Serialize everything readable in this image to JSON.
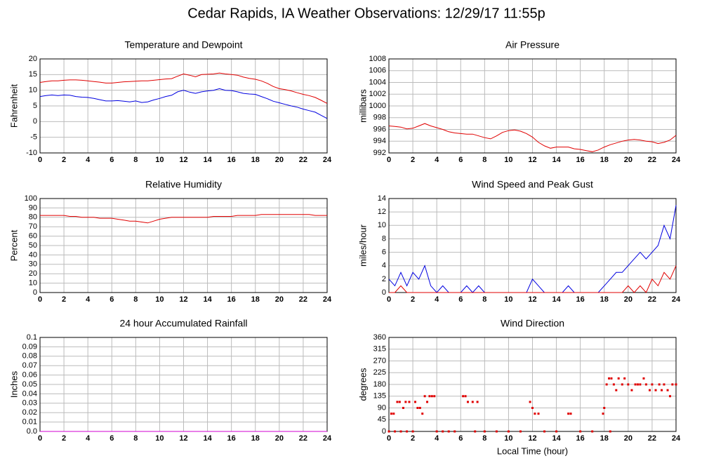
{
  "title": "Cedar Rapids, IA Weather Observations: 12/29/17 11:55p",
  "chart_data": [
    {
      "type": "line",
      "title": "Temperature and Dewpoint",
      "ylabel": "Fahrenheit",
      "xlim": [
        0,
        24
      ],
      "xticks": [
        0,
        2,
        4,
        6,
        8,
        10,
        12,
        14,
        16,
        18,
        20,
        22,
        24
      ],
      "ylim": [
        -10,
        20
      ],
      "yticks": [
        -10,
        -5,
        0,
        5,
        10,
        15,
        20
      ],
      "grid": true,
      "x": [
        0,
        0.5,
        1,
        1.5,
        2,
        2.5,
        3,
        3.5,
        4,
        4.5,
        5,
        5.5,
        6,
        6.5,
        7,
        7.5,
        8,
        8.5,
        9,
        9.5,
        10,
        10.5,
        11,
        11.5,
        12,
        12.5,
        13,
        13.5,
        14,
        14.5,
        15,
        15.5,
        16,
        16.5,
        17,
        17.5,
        18,
        18.5,
        19,
        19.5,
        20,
        20.5,
        21,
        21.5,
        22,
        22.5,
        23,
        23.5,
        24
      ],
      "series": [
        {
          "color": "#e00000",
          "values": [
            12.5,
            12.8,
            13,
            13,
            13.2,
            13.3,
            13.3,
            13.2,
            13,
            12.8,
            12.6,
            12.3,
            12.3,
            12.5,
            12.7,
            12.8,
            12.9,
            13,
            13,
            13.2,
            13.4,
            13.6,
            13.7,
            14.5,
            15.2,
            14.8,
            14.3,
            15,
            15.1,
            15.2,
            15.5,
            15.2,
            15,
            14.8,
            14.2,
            13.8,
            13.5,
            13,
            12.2,
            11.2,
            10.5,
            10.2,
            9.8,
            9.2,
            8.7,
            8.3,
            7.7,
            6.8,
            5.8
          ]
        },
        {
          "color": "#0000e0",
          "values": [
            8,
            8.3,
            8.5,
            8.3,
            8.5,
            8.4,
            8,
            7.8,
            7.7,
            7.4,
            7,
            6.6,
            6.6,
            6.7,
            6.5,
            6.3,
            6.6,
            6.1,
            6.3,
            6.9,
            7.4,
            8,
            8.4,
            9.5,
            10,
            9.4,
            9,
            9.5,
            9.8,
            10,
            10.5,
            10,
            9.9,
            9.5,
            9,
            8.8,
            8.7,
            8,
            7.3,
            6.5,
            6,
            5.5,
            5,
            4.6,
            4,
            3.5,
            3,
            2,
            1
          ]
        }
      ]
    },
    {
      "type": "line",
      "title": "Air Pressure",
      "ylabel": "millibars",
      "xlim": [
        0,
        24
      ],
      "xticks": [
        0,
        2,
        4,
        6,
        8,
        10,
        12,
        14,
        16,
        18,
        20,
        22,
        24
      ],
      "ylim": [
        992,
        1008
      ],
      "yticks": [
        992,
        994,
        996,
        998,
        1000,
        1002,
        1004,
        1006,
        1008
      ],
      "grid": true,
      "x": [
        0,
        0.5,
        1,
        1.5,
        2,
        2.5,
        3,
        3.5,
        4,
        4.5,
        5,
        5.5,
        6,
        6.5,
        7,
        7.5,
        8,
        8.5,
        9,
        9.5,
        10,
        10.5,
        11,
        11.5,
        12,
        12.5,
        13,
        13.5,
        14,
        14.5,
        15,
        15.5,
        16,
        16.5,
        17,
        17.5,
        18,
        18.5,
        19,
        19.5,
        20,
        20.5,
        21,
        21.5,
        22,
        22.5,
        23,
        23.5,
        24
      ],
      "series": [
        {
          "color": "#e00000",
          "values": [
            996.6,
            996.5,
            996.4,
            996.1,
            996.2,
            996.6,
            997.0,
            996.6,
            996.3,
            996.0,
            995.6,
            995.4,
            995.3,
            995.2,
            995.2,
            994.9,
            994.6,
            994.4,
            994.9,
            995.5,
            995.8,
            995.9,
            995.7,
            995.3,
            994.7,
            993.8,
            993.2,
            992.8,
            993.0,
            993.0,
            993.0,
            992.7,
            992.6,
            992.4,
            992.2,
            992.5,
            993.0,
            993.4,
            993.7,
            994.0,
            994.2,
            994.3,
            994.2,
            994.0,
            993.9,
            993.6,
            993.8,
            994.2,
            995.0
          ]
        }
      ]
    },
    {
      "type": "line",
      "title": "Relative Humidity",
      "ylabel": "Percent",
      "xlim": [
        0,
        24
      ],
      "xticks": [
        0,
        2,
        4,
        6,
        8,
        10,
        12,
        14,
        16,
        18,
        20,
        22,
        24
      ],
      "ylim": [
        0,
        100
      ],
      "yticks": [
        0,
        10,
        20,
        30,
        40,
        50,
        60,
        70,
        80,
        90,
        100
      ],
      "grid": true,
      "x": [
        0,
        0.5,
        1,
        1.5,
        2,
        2.5,
        3,
        3.5,
        4,
        4.5,
        5,
        5.5,
        6,
        6.5,
        7,
        7.5,
        8,
        8.5,
        9,
        9.5,
        10,
        10.5,
        11,
        11.5,
        12,
        12.5,
        13,
        13.5,
        14,
        14.5,
        15,
        15.5,
        16,
        16.5,
        17,
        17.5,
        18,
        18.5,
        19,
        19.5,
        20,
        20.5,
        21,
        21.5,
        22,
        22.5,
        23,
        23.5,
        24
      ],
      "series": [
        {
          "color": "#e00000",
          "values": [
            82,
            82,
            82,
            82,
            82,
            81,
            81,
            80,
            80,
            80,
            79,
            79,
            79,
            78,
            77,
            76,
            76,
            75,
            74,
            76,
            78,
            79,
            80,
            80,
            80,
            80,
            80,
            80,
            80,
            81,
            81,
            81,
            81,
            82,
            82,
            82,
            82,
            83,
            83,
            83,
            83,
            83,
            83,
            83,
            83,
            83,
            82,
            82,
            82
          ]
        }
      ]
    },
    {
      "type": "line",
      "title": "Wind Speed and Peak Gust",
      "ylabel": "miles/hour",
      "xlim": [
        0,
        24
      ],
      "xticks": [
        0,
        2,
        4,
        6,
        8,
        10,
        12,
        14,
        16,
        18,
        20,
        22,
        24
      ],
      "ylim": [
        0,
        14
      ],
      "yticks": [
        0,
        2,
        4,
        6,
        8,
        10,
        12,
        14
      ],
      "grid": true,
      "x": [
        0,
        0.5,
        1,
        1.5,
        2,
        2.5,
        3,
        3.5,
        4,
        4.5,
        5,
        5.5,
        6,
        6.5,
        7,
        7.5,
        8,
        8.5,
        9,
        9.5,
        10,
        10.5,
        11,
        11.5,
        12,
        12.5,
        13,
        13.5,
        14,
        14.5,
        15,
        15.5,
        16,
        16.5,
        17,
        17.5,
        18,
        18.5,
        19,
        19.5,
        20,
        20.5,
        21,
        21.5,
        22,
        22.5,
        23,
        23.5,
        24
      ],
      "series": [
        {
          "color": "#0000e0",
          "values": [
            2,
            1,
            3,
            1,
            3,
            2,
            4,
            1,
            0,
            1,
            0,
            0,
            0,
            1,
            0,
            1,
            0,
            0,
            0,
            0,
            0,
            0,
            0,
            0,
            2,
            1,
            0,
            0,
            0,
            0,
            1,
            0,
            0,
            0,
            0,
            0,
            1,
            2,
            3,
            3,
            4,
            5,
            6,
            5,
            6,
            7,
            10,
            8,
            13
          ]
        },
        {
          "color": "#e00000",
          "values": [
            0,
            0,
            1,
            0,
            0,
            0,
            0,
            0,
            0,
            0,
            0,
            0,
            0,
            0,
            0,
            0,
            0,
            0,
            0,
            0,
            0,
            0,
            0,
            0,
            0,
            0,
            0,
            0,
            0,
            0,
            0,
            0,
            0,
            0,
            0,
            0,
            0,
            0,
            0,
            0,
            1,
            0,
            1,
            0,
            2,
            1,
            3,
            2,
            4
          ]
        }
      ]
    },
    {
      "type": "line",
      "title": "24 hour Accumulated Rainfall",
      "ylabel": "Inches",
      "xlim": [
        0,
        24
      ],
      "xticks": [
        0,
        2,
        4,
        6,
        8,
        10,
        12,
        14,
        16,
        18,
        20,
        22,
        24
      ],
      "ylim": [
        0,
        0.1
      ],
      "yticks": [
        {
          "value": 0,
          "label": "0.0"
        },
        0.01,
        0.02,
        0.03,
        0.04,
        0.05,
        0.06,
        0.07,
        0.08,
        0.09,
        0.1
      ],
      "grid": true,
      "x": [
        0,
        24
      ],
      "series": [
        {
          "color": "#d000d0",
          "values": [
            0,
            0
          ]
        }
      ]
    },
    {
      "type": "scatter",
      "title": "Wind Direction",
      "ylabel": "degrees",
      "xlabel": "Local Time (hour)",
      "xlim": [
        0,
        24
      ],
      "xticks": [
        0,
        2,
        4,
        6,
        8,
        10,
        12,
        14,
        16,
        18,
        20,
        22,
        24
      ],
      "ylim": [
        0,
        360
      ],
      "yticks": [
        0,
        45,
        90,
        135,
        180,
        225,
        270,
        315,
        360
      ],
      "grid": true,
      "x": [
        0,
        0.2,
        0.4,
        0.5,
        0.7,
        0.9,
        1.0,
        1.2,
        1.4,
        1.5,
        1.7,
        2.0,
        2.2,
        2.4,
        2.6,
        2.8,
        3.0,
        3.2,
        3.4,
        3.6,
        3.8,
        4.0,
        4.5,
        5.0,
        5.5,
        6.2,
        6.4,
        6.6,
        7.0,
        7.2,
        7.4,
        8,
        9,
        10,
        11,
        11.8,
        12,
        12.2,
        12.5,
        13,
        14,
        15,
        15.2,
        16,
        17,
        17.9,
        18,
        18.2,
        18.4,
        18.5,
        18.6,
        18.8,
        19,
        19.2,
        19.5,
        19.7,
        20,
        20.3,
        20.6,
        20.8,
        21.0,
        21.3,
        21.5,
        21.8,
        22,
        22.3,
        22.6,
        22.8,
        23,
        23.3,
        23.5,
        23.7,
        24
      ],
      "series": [
        {
          "color": "#e00000",
          "values": [
            0,
            68,
            68,
            0,
            113,
            113,
            0,
            90,
            113,
            0,
            113,
            0,
            113,
            90,
            90,
            68,
            135,
            113,
            135,
            135,
            135,
            0,
            0,
            0,
            0,
            135,
            135,
            113,
            113,
            0,
            113,
            0,
            0,
            0,
            0,
            113,
            90,
            68,
            68,
            0,
            0,
            68,
            68,
            0,
            0,
            68,
            90,
            180,
            203,
            0,
            203,
            180,
            158,
            203,
            180,
            203,
            180,
            158,
            180,
            180,
            180,
            203,
            180,
            158,
            180,
            158,
            180,
            158,
            180,
            158,
            135,
            180,
            180
          ]
        }
      ]
    }
  ]
}
